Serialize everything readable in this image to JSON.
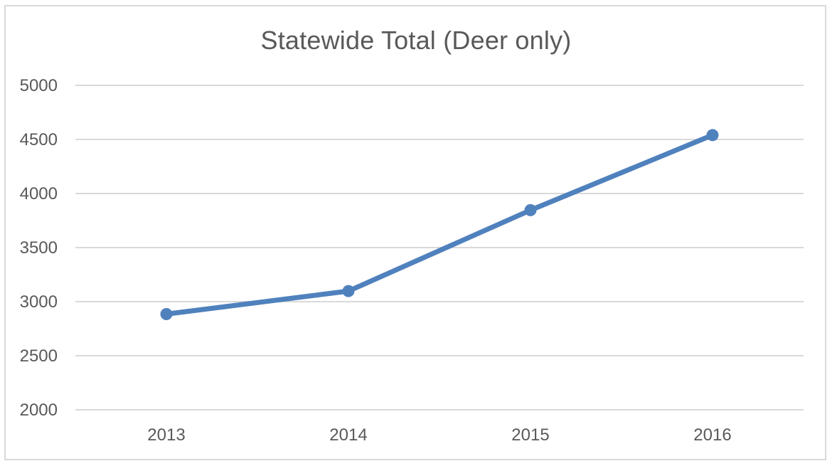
{
  "chart_data": {
    "type": "line",
    "title": "Statewide Total (Deer only)",
    "xlabel": "",
    "ylabel": "",
    "categories": [
      "2013",
      "2014",
      "2015",
      "2016"
    ],
    "series": [
      {
        "values": [
          2885,
          3098,
          3846,
          4540
        ]
      }
    ],
    "ylim": [
      2000,
      5000
    ],
    "yticks": [
      "2000",
      "2500",
      "3000",
      "3500",
      "4000",
      "4500",
      "5000"
    ],
    "grid": true,
    "legend": "none",
    "colors": {
      "line": "#4f81bd",
      "grid": "#d9d9d9",
      "text": "#595959",
      "border": "#d9d9d9"
    }
  }
}
